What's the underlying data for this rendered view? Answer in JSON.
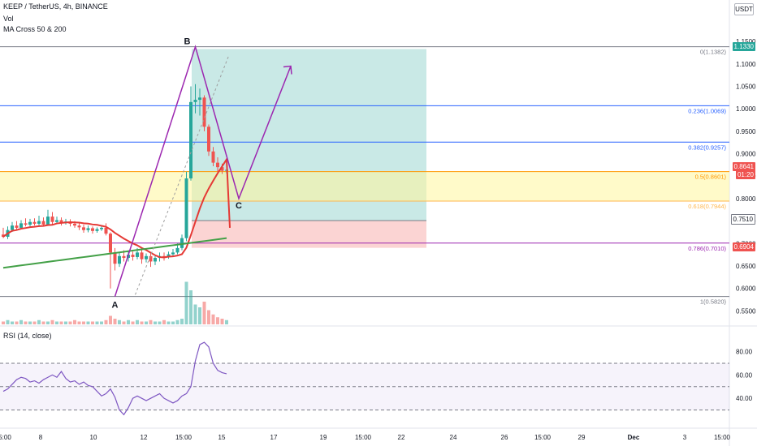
{
  "header": {
    "symbol": "KEEP / TetherUS, 4h, BINANCE",
    "vol": "Vol",
    "ma": "MA Cross 50 & 200",
    "currency": "USDT"
  },
  "price_badges": {
    "target": "1.1330",
    "last": "0.8641",
    "countdown": "01:20",
    "entry": "0.7510",
    "stop": "0.6904"
  },
  "chart_data": {
    "type": "candlestick",
    "y_axis": {
      "ticks": [
        1.15,
        1.1,
        1.05,
        1.0,
        0.95,
        0.9,
        0.85,
        0.8,
        0.75,
        0.7,
        0.65,
        0.6,
        0.55
      ]
    },
    "x_axis": {
      "ticks": [
        "5:00",
        "8",
        "10",
        "12",
        "15:00",
        "15",
        "17",
        "19",
        "15:00",
        "22",
        "24",
        "26",
        "15:00",
        "29",
        "Dec",
        "3",
        "15:00"
      ]
    },
    "candles": [
      [
        0.72,
        0.715,
        0.735,
        0.712
      ],
      [
        0.715,
        0.73,
        0.738,
        0.71
      ],
      [
        0.73,
        0.74,
        0.748,
        0.726
      ],
      [
        0.74,
        0.735,
        0.75,
        0.73
      ],
      [
        0.735,
        0.745,
        0.752,
        0.732
      ],
      [
        0.745,
        0.742,
        0.756,
        0.738
      ],
      [
        0.742,
        0.748,
        0.755,
        0.738
      ],
      [
        0.748,
        0.744,
        0.756,
        0.74
      ],
      [
        0.744,
        0.75,
        0.762,
        0.74
      ],
      [
        0.75,
        0.742,
        0.758,
        0.738
      ],
      [
        0.742,
        0.76,
        0.775,
        0.74
      ],
      [
        0.76,
        0.748,
        0.77,
        0.742
      ],
      [
        0.748,
        0.752,
        0.76,
        0.744
      ],
      [
        0.752,
        0.746,
        0.758,
        0.74
      ],
      [
        0.746,
        0.749,
        0.755,
        0.742
      ],
      [
        0.749,
        0.744,
        0.754,
        0.738
      ],
      [
        0.744,
        0.74,
        0.75,
        0.735
      ],
      [
        0.74,
        0.736,
        0.745,
        0.73
      ],
      [
        0.736,
        0.73,
        0.742,
        0.724
      ],
      [
        0.73,
        0.734,
        0.74,
        0.725
      ],
      [
        0.734,
        0.728,
        0.738,
        0.722
      ],
      [
        0.728,
        0.732,
        0.736,
        0.724
      ],
      [
        0.732,
        0.735,
        0.74,
        0.728
      ],
      [
        0.735,
        0.722,
        0.745,
        0.718
      ],
      [
        0.722,
        0.68,
        0.725,
        0.6
      ],
      [
        0.68,
        0.655,
        0.69,
        0.64
      ],
      [
        0.655,
        0.672,
        0.68,
        0.648
      ],
      [
        0.672,
        0.668,
        0.685,
        0.66
      ],
      [
        0.668,
        0.675,
        0.682,
        0.66
      ],
      [
        0.675,
        0.67,
        0.682,
        0.662
      ],
      [
        0.67,
        0.68,
        0.69,
        0.665
      ],
      [
        0.68,
        0.665,
        0.686,
        0.655
      ],
      [
        0.665,
        0.672,
        0.678,
        0.658
      ],
      [
        0.672,
        0.66,
        0.678,
        0.648
      ],
      [
        0.66,
        0.668,
        0.672,
        0.652
      ],
      [
        0.668,
        0.672,
        0.68,
        0.66
      ],
      [
        0.672,
        0.67,
        0.68,
        0.662
      ],
      [
        0.67,
        0.676,
        0.682,
        0.666
      ],
      [
        0.676,
        0.68,
        0.688,
        0.672
      ],
      [
        0.68,
        0.69,
        0.7,
        0.676
      ],
      [
        0.69,
        0.712,
        0.72,
        0.685
      ],
      [
        0.712,
        0.845,
        0.86,
        0.705
      ],
      [
        0.845,
        1.015,
        1.05,
        0.84
      ],
      [
        1.015,
        1.02,
        1.055,
        0.99
      ],
      [
        1.02,
        1.025,
        1.045,
        0.985
      ],
      [
        1.025,
        0.96,
        1.03,
        0.95
      ],
      [
        0.96,
        0.905,
        0.965,
        0.895
      ],
      [
        0.905,
        0.88,
        0.915,
        0.872
      ],
      [
        0.88,
        0.87,
        0.892,
        0.86
      ],
      [
        0.87,
        0.862,
        0.878,
        0.855
      ],
      [
        0.862,
        0.864,
        0.87,
        0.856
      ]
    ],
    "volume": [
      2,
      3,
      2,
      2,
      3,
      2,
      2,
      2,
      3,
      2,
      2,
      3,
      2,
      2,
      2,
      2,
      3,
      2,
      2,
      2,
      2,
      2,
      2,
      3,
      6,
      4,
      3,
      2,
      3,
      2,
      3,
      2,
      2,
      3,
      2,
      2,
      3,
      2,
      2,
      3,
      4,
      30,
      24,
      14,
      12,
      16,
      10,
      7,
      5,
      4,
      3
    ],
    "ma50": {
      "name": "MA 50",
      "color": "#e53935"
    },
    "ma200": {
      "name": "MA 200",
      "color": "#43a047"
    },
    "rsi": {
      "title": "RSI (14, close)",
      "ticks": [
        80.0,
        60.0,
        40.0
      ],
      "upper": 70,
      "mid": 50,
      "lower": 30,
      "values": [
        46,
        48,
        52,
        56,
        58,
        57,
        54,
        55,
        53,
        56,
        58,
        60,
        58,
        63,
        57,
        54,
        55,
        52,
        54,
        51,
        50,
        46,
        42,
        44,
        48,
        41,
        30,
        26,
        32,
        40,
        42,
        40,
        38,
        40,
        42,
        44,
        40,
        38,
        36,
        38,
        42,
        44,
        50,
        72,
        86,
        88,
        84,
        70,
        64,
        62,
        61
      ]
    },
    "fibonacci": [
      {
        "label": "0(1.1382)",
        "value": 1.1382,
        "color": "#787b86"
      },
      {
        "label": "0.236(1.0069)",
        "value": 1.0069,
        "color": "#2962ff"
      },
      {
        "label": "0.382(0.9257)",
        "value": 0.9257,
        "color": "#2962ff"
      },
      {
        "label": "0.5(0.8601)",
        "value": 0.8601,
        "color": "#ff9800"
      },
      {
        "label": "0.618(0.7944)",
        "value": 0.7944,
        "color": "#ffb74d"
      },
      {
        "label": "0.786(0.7010)",
        "value": 0.701,
        "color": "#9c27b0"
      },
      {
        "label": "1(0.5820)",
        "value": 0.582,
        "color": "#787b86"
      }
    ],
    "position": {
      "target": 1.133,
      "entry": 0.751,
      "stop": 0.6904
    },
    "pattern_labels": [
      "A",
      "B",
      "C"
    ]
  }
}
